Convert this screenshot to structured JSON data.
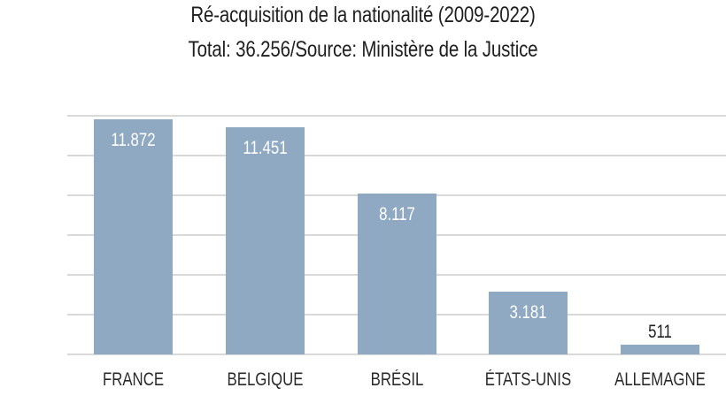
{
  "chart_data": {
    "type": "bar",
    "title": "Ré-acquisition de la nationalité (2009-2022)",
    "subtitle": "Total: 36.256/Source: Ministère de la Justice",
    "categories": [
      "FRANCE",
      "BELGIQUE",
      "BRÉSIL",
      "ÉTATS-UNIS",
      "ALLEMAGNE"
    ],
    "values": [
      11872,
      11451,
      8117,
      3181,
      511
    ],
    "value_labels": [
      "11.872",
      "11.451",
      "8.117",
      "3.181",
      "511"
    ],
    "xlabel": "",
    "ylabel": "",
    "ylim": [
      0,
      12000
    ],
    "grid": true,
    "grid_step": 2000,
    "legend": null,
    "bar_color": "#8ea9c1"
  }
}
